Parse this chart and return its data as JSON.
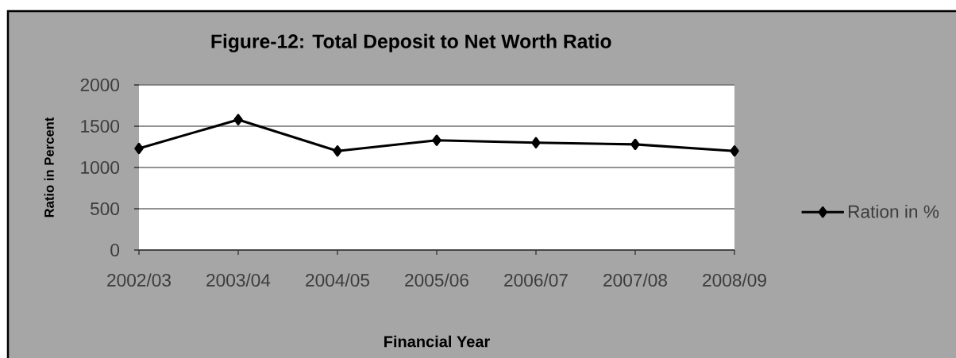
{
  "chart_data": {
    "type": "line",
    "title": "Figure-12: Total Deposit to Net Worth Ratio",
    "xlabel": "Financial Year",
    "ylabel": "Ratio in Percent",
    "categories": [
      "2002/03",
      "2003/04",
      "2004/05",
      "2005/06",
      "2006/07",
      "2007/08",
      "2008/09"
    ],
    "series": [
      {
        "name": "Ration in %",
        "color": "#000000",
        "values": [
          1230,
          1580,
          1200,
          1330,
          1300,
          1280,
          1200
        ]
      }
    ],
    "ylim": [
      0,
      2000
    ],
    "yticks": [
      0,
      500,
      1000,
      1500,
      2000
    ],
    "grid": "y",
    "legend": "right",
    "marker": "diamond",
    "line_style": "solid"
  }
}
